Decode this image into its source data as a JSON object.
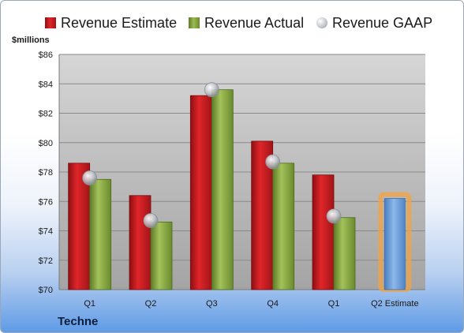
{
  "chart_data": {
    "type": "bar",
    "title": "",
    "ylabel": "$millions",
    "categories": [
      "Q1",
      "Q2",
      "Q3",
      "Q4",
      "Q1",
      "Q2 Estimate"
    ],
    "ylim": [
      70,
      86
    ],
    "yticks": [
      "$70",
      "$72",
      "$74",
      "$76",
      "$78",
      "$80",
      "$82",
      "$84",
      "$86"
    ],
    "ytick_values": [
      70,
      72,
      74,
      76,
      78,
      80,
      82,
      84,
      86
    ],
    "series": [
      {
        "name": "Revenue Estimate",
        "kind": "bar",
        "color": "#c8171c",
        "values": [
          78.6,
          76.4,
          83.2,
          80.1,
          77.8,
          null
        ]
      },
      {
        "name": "Revenue Actual",
        "kind": "bar",
        "color": "#7e9e3a",
        "values": [
          77.5,
          74.6,
          83.6,
          78.6,
          74.9,
          null
        ]
      },
      {
        "name": "Revenue GAAP",
        "kind": "marker",
        "color": "#c9ccd1",
        "values": [
          77.6,
          74.7,
          83.6,
          78.7,
          75.0,
          null
        ]
      },
      {
        "name": "Q2 Estimate",
        "kind": "highlight-bar",
        "color": "#6b9fd8",
        "values": [
          null,
          null,
          null,
          null,
          null,
          76.2
        ]
      }
    ],
    "grid": true,
    "legend": "top"
  },
  "company": "Techne"
}
